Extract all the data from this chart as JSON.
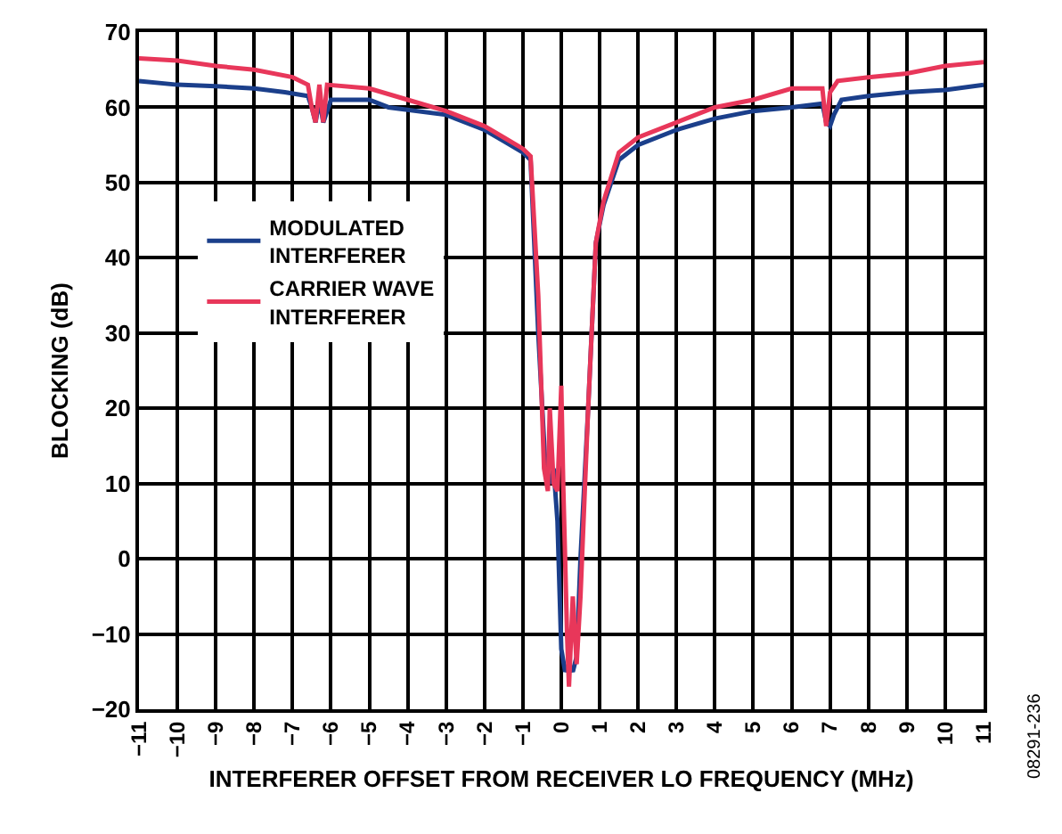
{
  "chart_data": {
    "type": "line",
    "xlabel": "INTERFERER OFFSET FROM RECEIVER LO FREQUENCY (MHz)",
    "ylabel": "BLOCKING (dB)",
    "xlim": [
      -11,
      11
    ],
    "xticks": [
      {
        "value": -11,
        "label": "−11"
      },
      {
        "value": -10,
        "label": "−10"
      },
      {
        "value": -9,
        "label": "−9"
      },
      {
        "value": -8,
        "label": "−8"
      },
      {
        "value": -7,
        "label": "−7"
      },
      {
        "value": -6,
        "label": "−6"
      },
      {
        "value": -5,
        "label": "−5"
      },
      {
        "value": -4,
        "label": "−4"
      },
      {
        "value": -3,
        "label": "−3"
      },
      {
        "value": -2,
        "label": "−2"
      },
      {
        "value": -1,
        "label": "−1"
      },
      0,
      1,
      2,
      3,
      4,
      5,
      6,
      7,
      8,
      9,
      10,
      11
    ],
    "ylim": [
      -20,
      70
    ],
    "yticks": [
      {
        "value": -20,
        "label": "−20"
      },
      {
        "value": -10,
        "label": "−10"
      },
      0,
      10,
      20,
      30,
      40,
      50,
      60,
      70
    ],
    "grid": true,
    "legend": "top left",
    "line_style": "solid",
    "marker": "none",
    "annotations": [
      "08291-236"
    ],
    "series": [
      {
        "name": "MODULATED\nINTERFERER",
        "color": "#1b3f8b",
        "x": [
          -11,
          -10,
          -9,
          -8,
          -7.2,
          -6.6,
          -6.5,
          -6.4,
          -6.3,
          -6.2,
          -6,
          -5,
          -4.5,
          -3,
          -2,
          -1.5,
          -1,
          -0.8,
          -0.6,
          -0.4,
          -0.3,
          -0.2,
          -0.1,
          0,
          0.1,
          0.2,
          0.3,
          0.4,
          0.5,
          0.7,
          0.9,
          1.1,
          1.5,
          2,
          3,
          4,
          5,
          6,
          6.8,
          6.9,
          7,
          7.1,
          7.3,
          8,
          9,
          10,
          11
        ],
        "values": [
          63.5,
          63,
          62.8,
          62.5,
          62,
          61.5,
          60,
          58,
          61,
          58,
          61,
          61,
          60,
          59,
          57,
          55.5,
          54,
          53,
          30,
          11,
          10,
          12,
          5,
          -12,
          -15,
          -14,
          -15,
          -13,
          0,
          20,
          42,
          47,
          53,
          55,
          57,
          58.5,
          59.5,
          60,
          60.5,
          58,
          57.5,
          59,
          61,
          61.5,
          62,
          62.3,
          63
        ]
      },
      {
        "name": "CARRIER WAVE\nINTERFERER",
        "color": "#e8375a",
        "x": [
          -11,
          -10,
          -9,
          -8,
          -7,
          -6.6,
          -6.5,
          -6.4,
          -6.3,
          -6.2,
          -6.1,
          -5,
          -4,
          -3,
          -2,
          -1.5,
          -1,
          -0.8,
          -0.6,
          -0.45,
          -0.35,
          -0.3,
          -0.2,
          -0.1,
          0,
          0.05,
          0.15,
          0.2,
          0.3,
          0.4,
          0.5,
          0.7,
          0.9,
          1.1,
          1.5,
          2,
          3,
          4,
          5,
          6,
          6.8,
          6.9,
          7,
          7.2,
          8,
          9,
          10,
          11
        ],
        "values": [
          66.5,
          66.2,
          65.5,
          65,
          64,
          63,
          60,
          58,
          63,
          58,
          63,
          62.5,
          61,
          59.5,
          57.5,
          56,
          54.5,
          53.5,
          35,
          12,
          9,
          20,
          10,
          9,
          23,
          10,
          -10,
          -17,
          -5,
          -14,
          -5,
          20,
          42,
          47.5,
          54,
          56,
          58,
          60,
          61,
          62.5,
          62.5,
          57.5,
          62,
          63.5,
          64,
          64.5,
          65.5,
          66
        ]
      }
    ]
  }
}
